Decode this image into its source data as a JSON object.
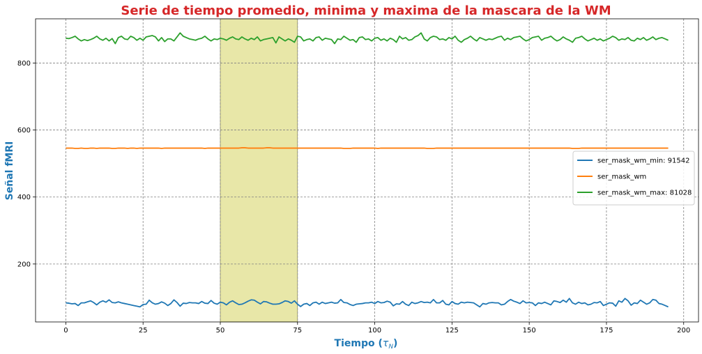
{
  "colors": {
    "title": "#d62728",
    "axis_label": "#1f77b4",
    "highlight": "#e6e49e"
  },
  "chart_data": {
    "type": "line",
    "title": "Serie de tiempo promedio, minima y maxima de la mascara de la WM",
    "xlabel": "Tiempo (τ_N)",
    "xlabel_main": "Tiempo (",
    "xlabel_tau": "τ",
    "xlabel_sub": "N",
    "xlabel_close": ")",
    "ylabel": "Señal fMRI",
    "xlim": [
      -9.8,
      204.8
    ],
    "ylim": [
      27,
      932
    ],
    "xticks": [
      0,
      25,
      50,
      75,
      100,
      125,
      150,
      175,
      200
    ],
    "yticks": [
      200,
      400,
      600,
      800
    ],
    "grid": true,
    "legend_position": "center-right",
    "highlight_span": [
      50,
      75
    ],
    "series": [
      {
        "name": "ser_mask_wm_min: 91542",
        "color": "#1f77b4",
        "values": [
          84,
          83,
          81,
          82,
          76,
          84,
          84,
          87,
          90,
          85,
          78,
          86,
          90,
          86,
          93,
          85,
          84,
          87,
          84,
          82,
          80,
          78,
          76,
          74,
          72,
          79,
          80,
          92,
          84,
          80,
          82,
          87,
          83,
          76,
          82,
          93,
          85,
          74,
          83,
          82,
          85,
          84,
          84,
          82,
          88,
          83,
          82,
          91,
          83,
          80,
          86,
          84,
          78,
          86,
          90,
          84,
          79,
          80,
          84,
          89,
          93,
          92,
          86,
          81,
          88,
          87,
          83,
          80,
          80,
          81,
          85,
          90,
          88,
          83,
          90,
          80,
          73,
          80,
          82,
          76,
          84,
          86,
          80,
          86,
          82,
          84,
          86,
          83,
          84,
          94,
          85,
          84,
          79,
          76,
          80,
          81,
          82,
          84,
          84,
          86,
          82,
          88,
          84,
          85,
          89,
          86,
          75,
          81,
          80,
          88,
          80,
          76,
          86,
          82,
          84,
          88,
          85,
          86,
          84,
          94,
          84,
          84,
          91,
          80,
          78,
          88,
          82,
          80,
          86,
          84,
          86,
          85,
          84,
          78,
          72,
          82,
          80,
          84,
          85,
          84,
          84,
          78,
          80,
          88,
          94,
          89,
          86,
          82,
          90,
          84,
          85,
          84,
          76,
          84,
          82,
          86,
          82,
          78,
          90,
          88,
          85,
          92,
          86,
          97,
          84,
          80,
          86,
          82,
          84,
          78,
          80,
          85,
          84,
          88,
          76,
          80,
          84,
          83,
          74,
          90,
          86,
          97,
          90,
          77,
          84,
          82,
          92,
          86,
          80,
          84,
          94,
          92,
          82,
          80,
          76,
          72
        ]
      },
      {
        "name": "ser_mask_wm",
        "color": "#ff7f0e",
        "values": [
          546,
          546,
          546,
          545,
          545,
          546,
          545,
          545,
          546,
          546,
          545,
          546,
          546,
          546,
          546,
          545,
          545,
          546,
          546,
          546,
          545,
          546,
          546,
          545,
          546,
          546,
          546,
          546,
          546,
          546,
          546,
          545,
          546,
          546,
          546,
          546,
          546,
          546,
          546,
          546,
          546,
          546,
          546,
          546,
          546,
          545,
          546,
          546,
          546,
          546,
          546,
          546,
          546,
          546,
          546,
          546,
          546,
          547,
          547,
          546,
          546,
          546,
          546,
          546,
          546,
          547,
          547,
          546,
          546,
          546,
          546,
          546,
          546,
          546,
          546,
          546,
          546,
          546,
          546,
          546,
          546,
          546,
          546,
          546,
          546,
          546,
          546,
          546,
          546,
          546,
          545,
          545,
          545,
          546,
          546,
          546,
          546,
          546,
          546,
          546,
          546,
          545,
          546,
          546,
          546,
          546,
          546,
          546,
          546,
          546,
          546,
          546,
          546,
          546,
          546,
          546,
          546,
          545,
          545,
          545,
          546,
          546,
          546,
          546,
          546,
          546,
          546,
          546,
          546,
          546,
          546,
          546,
          546,
          546,
          546,
          546,
          546,
          546,
          546,
          546,
          546,
          546,
          546,
          546,
          546,
          546,
          546,
          546,
          546,
          546,
          546,
          546,
          546,
          546,
          546,
          546,
          546,
          546,
          546,
          546,
          546,
          546,
          546,
          546,
          545,
          545,
          545,
          546,
          546,
          546,
          546,
          546,
          546,
          546,
          546,
          546,
          546,
          546,
          546,
          546,
          546,
          546,
          546,
          546,
          546,
          546,
          546,
          546,
          546,
          546,
          546,
          546,
          546,
          546,
          546,
          546
        ]
      },
      {
        "name": "ser_mask_wm_max: 81028",
        "color": "#2ca02c",
        "values": [
          874,
          873,
          876,
          880,
          872,
          866,
          870,
          867,
          870,
          874,
          880,
          872,
          868,
          874,
          866,
          873,
          858,
          876,
          880,
          872,
          870,
          880,
          876,
          868,
          874,
          868,
          878,
          880,
          882,
          878,
          866,
          876,
          864,
          872,
          872,
          866,
          878,
          890,
          880,
          876,
          872,
          870,
          868,
          872,
          874,
          880,
          872,
          866,
          872,
          870,
          874,
          872,
          868,
          874,
          878,
          872,
          870,
          878,
          872,
          868,
          874,
          870,
          878,
          866,
          870,
          872,
          874,
          876,
          860,
          878,
          872,
          866,
          872,
          868,
          862,
          880,
          878,
          866,
          870,
          872,
          866,
          876,
          878,
          868,
          874,
          872,
          870,
          858,
          872,
          870,
          880,
          874,
          868,
          870,
          862,
          876,
          878,
          870,
          872,
          866,
          874,
          876,
          868,
          872,
          866,
          874,
          870,
          862,
          880,
          872,
          876,
          868,
          870,
          878,
          882,
          890,
          872,
          866,
          876,
          880,
          878,
          870,
          872,
          868,
          876,
          872,
          880,
          868,
          862,
          870,
          874,
          880,
          872,
          866,
          876,
          872,
          868,
          872,
          870,
          874,
          878,
          880,
          868,
          874,
          870,
          876,
          878,
          880,
          872,
          866,
          870,
          876,
          878,
          880,
          868,
          874,
          876,
          880,
          872,
          866,
          870,
          878,
          872,
          868,
          862,
          874,
          876,
          880,
          872,
          866,
          870,
          874,
          868,
          872,
          866,
          870,
          874,
          880,
          876,
          868,
          872,
          870,
          876,
          868,
          866,
          874,
          870,
          876,
          868,
          872,
          878,
          870,
          874,
          876,
          872,
          868
        ]
      }
    ]
  }
}
